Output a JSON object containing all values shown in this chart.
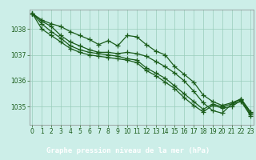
{
  "title": "Graphe pression niveau de la mer (hPa)",
  "bg_color": "#cceee8",
  "label_bg": "#2d6a2d",
  "label_fg": "#ffffff",
  "grid_color": "#99ccbb",
  "line_color": "#1a5c1a",
  "ylim": [
    1034.3,
    1038.75
  ],
  "xlim": [
    -0.3,
    23.3
  ],
  "yticks": [
    1035,
    1036,
    1037,
    1038
  ],
  "xticks": [
    0,
    1,
    2,
    3,
    4,
    5,
    6,
    7,
    8,
    9,
    10,
    11,
    12,
    13,
    14,
    15,
    16,
    17,
    18,
    19,
    20,
    21,
    22,
    23
  ],
  "series": [
    [
      1038.6,
      1038.35,
      1038.2,
      1038.1,
      1037.9,
      1037.75,
      1037.6,
      1037.4,
      1037.55,
      1037.35,
      1037.75,
      1037.7,
      1037.4,
      1037.15,
      1037.0,
      1036.55,
      1036.25,
      1035.95,
      1035.45,
      1035.2,
      1035.05,
      1035.15,
      1035.3,
      1034.75
    ],
    [
      1038.6,
      1038.3,
      1038.1,
      1037.75,
      1037.5,
      1037.35,
      1037.2,
      1037.1,
      1037.1,
      1037.05,
      1037.1,
      1037.05,
      1036.95,
      1036.75,
      1036.55,
      1036.3,
      1036.0,
      1035.6,
      1035.15,
      1034.85,
      1034.75,
      1035.1,
      1035.2,
      1034.65
    ],
    [
      1038.6,
      1038.2,
      1037.9,
      1037.65,
      1037.35,
      1037.2,
      1037.1,
      1037.05,
      1037.0,
      1036.95,
      1036.85,
      1036.8,
      1036.5,
      1036.3,
      1036.1,
      1035.8,
      1035.5,
      1035.2,
      1034.9,
      1035.1,
      1035.0,
      1035.1,
      1035.3,
      1034.8
    ],
    [
      1038.6,
      1038.0,
      1037.75,
      1037.5,
      1037.25,
      1037.1,
      1037.0,
      1036.95,
      1036.9,
      1036.85,
      1036.8,
      1036.7,
      1036.4,
      1036.2,
      1035.95,
      1035.7,
      1035.35,
      1035.05,
      1034.8,
      1035.05,
      1034.95,
      1035.0,
      1035.25,
      1034.7
    ]
  ],
  "marker": "+",
  "markersize": 4,
  "linewidth": 0.9,
  "tick_fontsize": 5.5,
  "label_fontsize": 6.5,
  "spine_color": "#888888"
}
